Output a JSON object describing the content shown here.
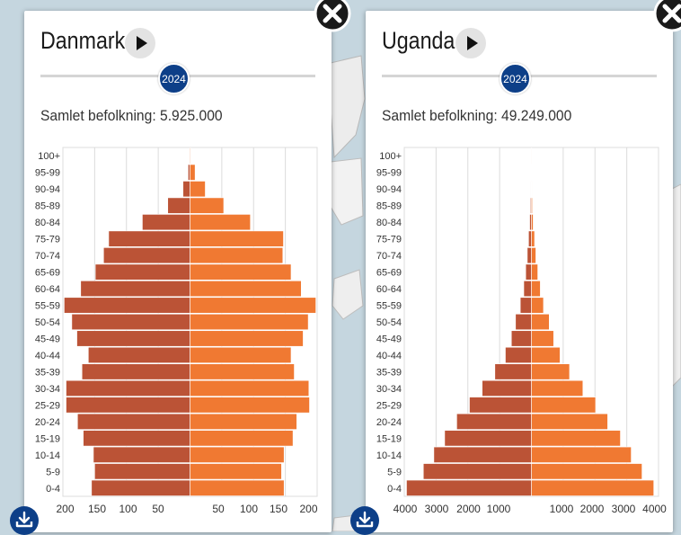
{
  "colors": {
    "male": "#bb5336",
    "female": "#f07932",
    "handle": "#0d3f88",
    "grid": "#dcdcdc"
  },
  "icons": {
    "play": "play-icon",
    "close": "close-icon",
    "download": "download-icon"
  },
  "panels": [
    {
      "country": "Danmark",
      "year": "2024",
      "total_label": "Samlet befolkning: 5.925.000"
    },
    {
      "country": "Uganda",
      "year": "2024",
      "total_label": "Samlet befolkning: 49.249.000"
    }
  ],
  "chart_data": [
    {
      "type": "bar",
      "orientation": "horizontal-pyramid",
      "title": "",
      "categories": [
        "100+",
        "95-99",
        "90-94",
        "85-89",
        "80-84",
        "75-79",
        "70-74",
        "65-69",
        "60-64",
        "55-59",
        "50-54",
        "45-49",
        "40-44",
        "35-39",
        "30-34",
        "25-29",
        "20-24",
        "15-19",
        "10-14",
        "5-9",
        "0-4"
      ],
      "series": [
        {
          "values": [
            0.5,
            3,
            11,
            35,
            75,
            128,
            136,
            149,
            172,
            198,
            186,
            178,
            160,
            170,
            195,
            195,
            177,
            168,
            152,
            150,
            155
          ]
        },
        {
          "values": [
            1,
            8,
            24,
            53,
            95,
            147,
            146,
            159,
            175,
            198,
            186,
            178,
            159,
            164,
            187,
            188,
            168,
            162,
            148,
            144,
            148
          ]
        }
      ],
      "x_ticks": [
        "200",
        "150",
        "100",
        "50",
        "50",
        "100",
        "150",
        "200"
      ],
      "xlim": [
        -200,
        200
      ],
      "grid": true
    },
    {
      "type": "bar",
      "orientation": "horizontal-pyramid",
      "title": "",
      "categories": [
        "100+",
        "95-99",
        "90-94",
        "85-89",
        "80-84",
        "75-79",
        "70-74",
        "65-69",
        "60-64",
        "55-59",
        "50-54",
        "45-49",
        "40-44",
        "35-39",
        "30-34",
        "25-29",
        "20-24",
        "15-19",
        "10-14",
        "5-9",
        "0-4"
      ],
      "series": [
        {
          "values": [
            1,
            6,
            15,
            30,
            55,
            90,
            130,
            180,
            240,
            350,
            500,
            630,
            820,
            1150,
            1550,
            1950,
            2350,
            2730,
            3070,
            3400,
            3930
          ]
        },
        {
          "values": [
            1,
            6,
            15,
            30,
            55,
            100,
            140,
            200,
            280,
            380,
            560,
            700,
            900,
            1200,
            1620,
            2020,
            2400,
            2800,
            3140,
            3480,
            3850
          ]
        }
      ],
      "x_ticks": [
        "4000",
        "3000",
        "2000",
        "1000",
        "1000",
        "2000",
        "3000",
        "4000"
      ],
      "xlim": [
        -4000,
        4000
      ],
      "grid": true
    }
  ]
}
